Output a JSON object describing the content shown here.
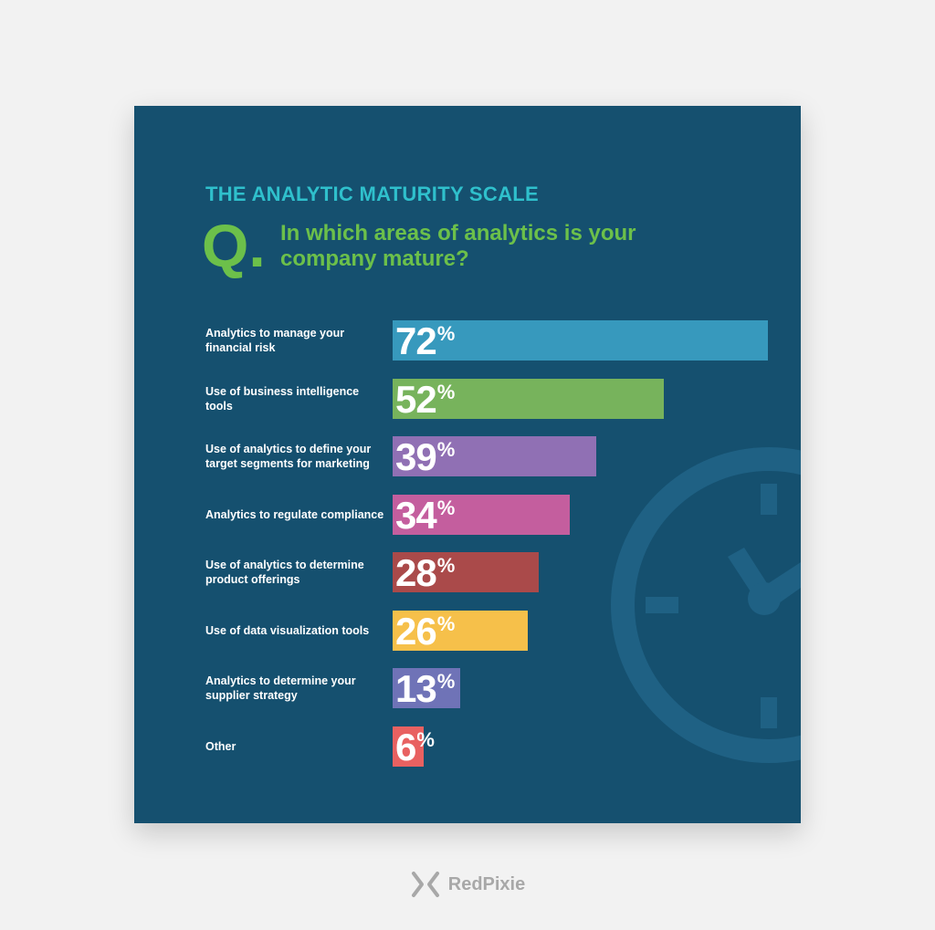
{
  "infographic": {
    "heading": "THE ANALYTIC MATURITY SCALE",
    "q_letter": "Q.",
    "question": "In which areas of analytics is your company mature?",
    "decoration_icon": "clock-icon"
  },
  "chart_data": {
    "type": "bar",
    "orientation": "horizontal",
    "categories": [
      "Analytics to manage your financial risk",
      "Use of business intelligence tools",
      "Use of analytics to define your target segments for marketing",
      "Analytics to regulate compliance",
      "Use of analytics to determine product offerings",
      "Use of data visualization tools",
      "Analytics to determine your supplier strategy",
      "Other"
    ],
    "values": [
      72,
      52,
      39,
      34,
      28,
      26,
      13,
      6
    ],
    "value_suffix": "%",
    "colors": [
      "#3799bd",
      "#77b35c",
      "#9070b4",
      "#c45e9e",
      "#aa4a4a",
      "#f6c04a",
      "#6f73b7",
      "#e86161"
    ],
    "title": "",
    "xlabel": "",
    "ylabel": "",
    "grid": false,
    "legend": "none"
  },
  "colors": {
    "page_background": "#f2f2f2",
    "card_background": "#15506f",
    "heading": "#2fc0cc",
    "question": "#6cc04a"
  },
  "footer": {
    "brand": "RedPixie",
    "brand_icon": "redpixie-logo-icon"
  }
}
